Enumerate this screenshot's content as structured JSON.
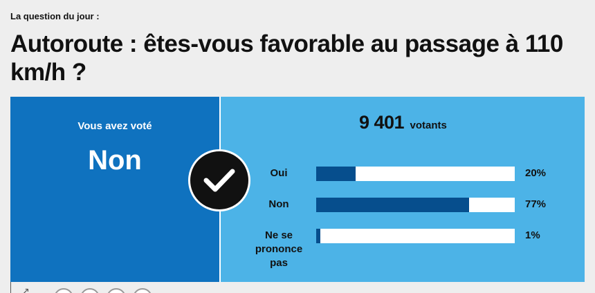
{
  "header": {
    "kicker": "La question du jour :",
    "question": "Autoroute : êtes-vous favorable au passage à 110 km/h ?"
  },
  "vote": {
    "label": "Vous avez voté",
    "value": "Non"
  },
  "results": {
    "voters_count": "9 401",
    "voters_label": "votants",
    "rows": [
      {
        "label": "Oui",
        "percent": 20,
        "percent_label": "20%"
      },
      {
        "label": "Non",
        "percent": 77,
        "percent_label": "77%"
      },
      {
        "label": "Ne se prononce pas",
        "percent": 1,
        "percent_label": "1%"
      }
    ]
  },
  "icons": {
    "check": "check-icon",
    "share": "share-icon"
  },
  "colors": {
    "vote_panel": "#0f72bf",
    "results_panel": "#4cb3e7",
    "bar_fill": "#064e8d",
    "bar_track": "#ffffff",
    "badge": "#111111"
  }
}
